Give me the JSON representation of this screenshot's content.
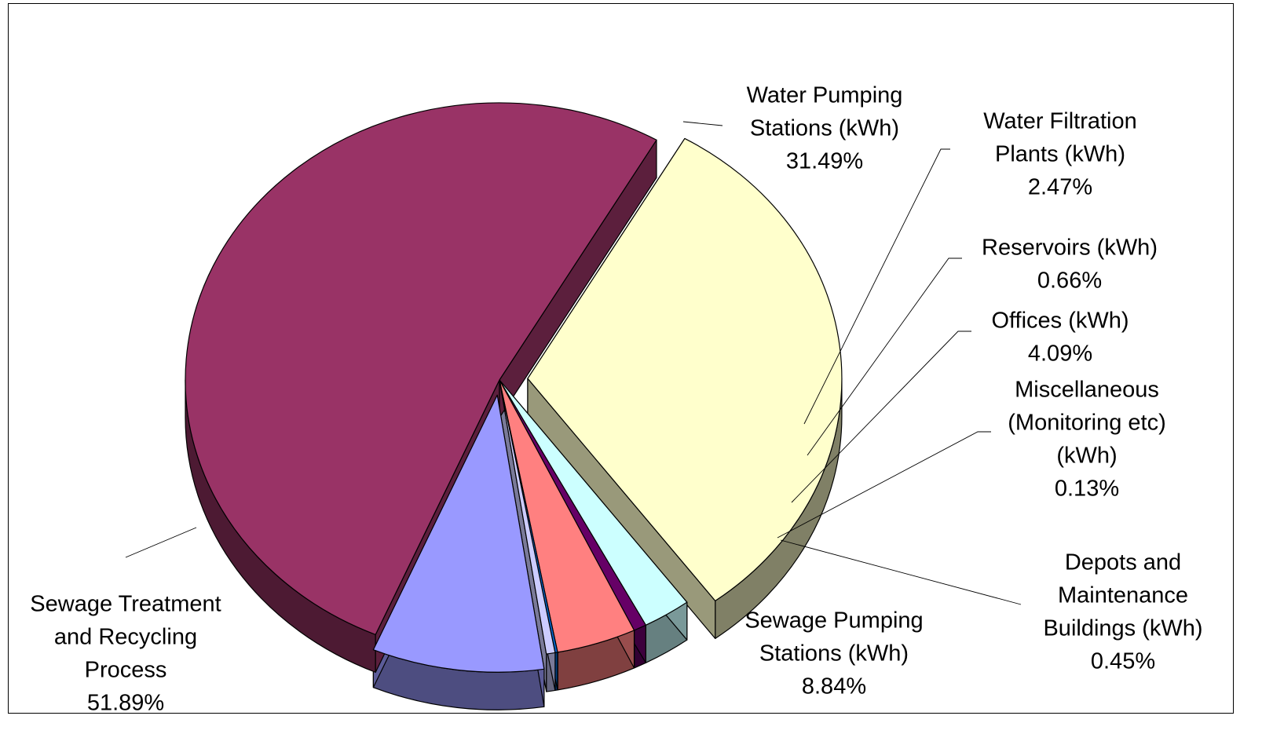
{
  "chart_data": {
    "type": "pie",
    "style": "3d-exploded",
    "title": "",
    "slices": [
      {
        "label_lines": [
          "Water Pumping",
          "Stations (kWh)"
        ],
        "percent_label": "31.49%",
        "value": 31.49,
        "color": "#FFFFCC"
      },
      {
        "label_lines": [
          "Water Filtration",
          "Plants (kWh)"
        ],
        "percent_label": "2.47%",
        "value": 2.47,
        "color": "#CCFFFF"
      },
      {
        "label_lines": [
          "Reservoirs (kWh)"
        ],
        "percent_label": "0.66%",
        "value": 0.66,
        "color": "#660066"
      },
      {
        "label_lines": [
          "Offices (kWh)"
        ],
        "percent_label": "4.09%",
        "value": 4.09,
        "color": "#FF8080"
      },
      {
        "label_lines": [
          "Miscellaneous",
          "(Monitoring etc)",
          "(kWh)"
        ],
        "percent_label": "0.13%",
        "value": 0.13,
        "color": "#0066CC"
      },
      {
        "label_lines": [
          "Depots and",
          "Maintenance",
          "Buildings (kWh)"
        ],
        "percent_label": "0.45%",
        "value": 0.45,
        "color": "#CCCCFF"
      },
      {
        "label_lines": [
          "Sewage Pumping",
          "Stations (kWh)"
        ],
        "percent_label": "8.84%",
        "value": 8.84,
        "color": "#9999FF"
      },
      {
        "label_lines": [
          "Sewage Treatment",
          "and Recycling",
          "Process"
        ],
        "percent_label": "51.89%",
        "value": 51.89,
        "color": "#993366"
      }
    ]
  }
}
